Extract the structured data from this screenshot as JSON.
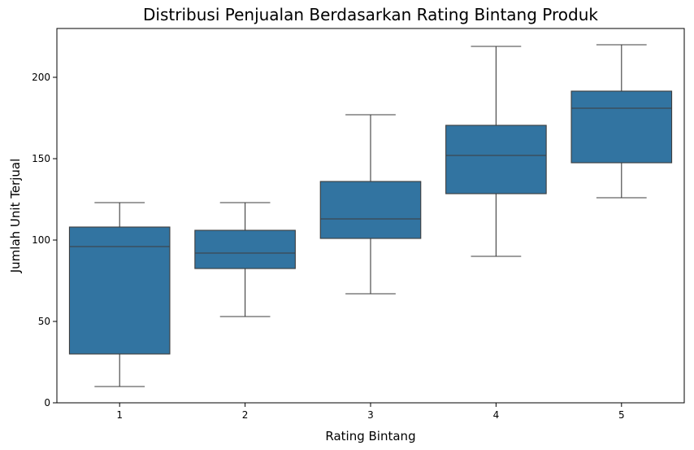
{
  "chart_data": {
    "type": "boxplot",
    "title": "Distribusi Penjualan Berdasarkan Rating Bintang Produk",
    "xlabel": "Rating Bintang",
    "ylabel": "Jumlah Unit Terjual",
    "ylim": [
      0,
      230
    ],
    "yticks": [
      0,
      50,
      100,
      150,
      200
    ],
    "grid": false,
    "box_color": "#3274a1",
    "line_color": "#3d3d3d",
    "boxes": [
      {
        "category": "1",
        "whisker_low": 10,
        "q1": 30,
        "median": 96,
        "q3": 108,
        "whisker_high": 123
      },
      {
        "category": "2",
        "whisker_low": 53,
        "q1": 82.5,
        "median": 92,
        "q3": 106,
        "whisker_high": 123
      },
      {
        "category": "3",
        "whisker_low": 67,
        "q1": 101,
        "median": 113,
        "q3": 136,
        "whisker_high": 177
      },
      {
        "category": "4",
        "whisker_low": 90,
        "q1": 128.5,
        "median": 152,
        "q3": 170.5,
        "whisker_high": 219
      },
      {
        "category": "5",
        "whisker_low": 126,
        "q1": 147.5,
        "median": 181,
        "q3": 191.5,
        "whisker_high": 220
      }
    ]
  }
}
